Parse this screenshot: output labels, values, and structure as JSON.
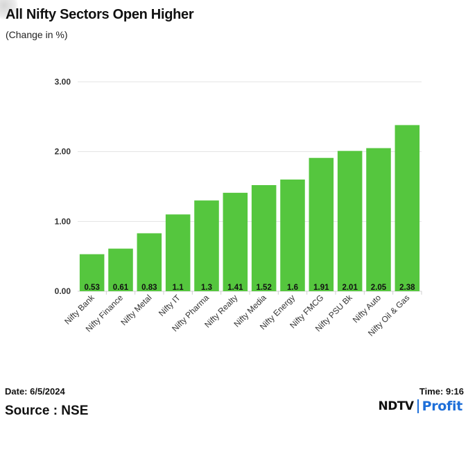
{
  "header": {
    "title": "All Nifty Sectors Open Higher",
    "subtitle": "(Change in %)"
  },
  "chart_data": {
    "type": "bar",
    "categories": [
      "Nifty Bank",
      "Nifty Finance",
      "Nifty Metal",
      "Nifty IT",
      "Nifty Pharma",
      "Nifty Realty",
      "Nifty Media",
      "Nifty Energy",
      "Nifty FMCG",
      "Nifty PSU Bk",
      "Nifty Auto",
      "Nifty Oil & Gas"
    ],
    "values": [
      0.53,
      0.61,
      0.83,
      1.1,
      1.3,
      1.41,
      1.52,
      1.6,
      1.91,
      2.01,
      2.05,
      2.38
    ],
    "data_labels": [
      "0.53",
      "0.61",
      "0.83",
      "1.1",
      "1.3",
      "1.41",
      "1.52",
      "1.6",
      "1.91",
      "2.01",
      "2.05",
      "2.38"
    ],
    "yticks": [
      "0.00",
      "1.00",
      "2.00",
      "3.00"
    ],
    "ylim": [
      0,
      3
    ],
    "grid": true,
    "bar_color": "#55c63e"
  },
  "footer": {
    "date": "Date: 6/5/2024",
    "time": "Time: 9:16",
    "source": "Source : NSE",
    "logo_left": "NDTV",
    "logo_right": "Profit"
  }
}
